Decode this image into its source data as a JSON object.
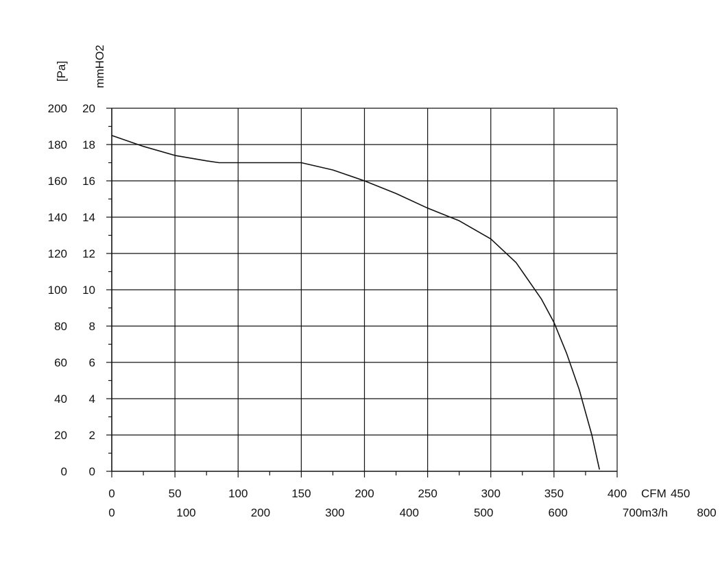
{
  "chart_data": {
    "type": "line",
    "title": "",
    "y_label_pa": "[Pa]",
    "y_label_mmh2o": "mmHO2",
    "x_label_cfm": "CFM",
    "x_label_m3h": "m3/h",
    "xlim_cfm": [
      0,
      400
    ],
    "ylim_pa": [
      0,
      200
    ],
    "y_ticks_pa": [
      "0",
      "20",
      "40",
      "60",
      "80",
      "100",
      "120",
      "140",
      "160",
      "180",
      "200"
    ],
    "y_ticks_mmh2o": [
      "0",
      "2",
      "4",
      "6",
      "8",
      "10",
      "12",
      "14",
      "16",
      "18",
      "20"
    ],
    "x_ticks_cfm": [
      "0",
      "50",
      "100",
      "150",
      "200",
      "250",
      "300",
      "350",
      "400",
      "450"
    ],
    "x_ticks_m3h": [
      "0",
      "100",
      "200",
      "300",
      "400",
      "500",
      "600",
      "700",
      "800"
    ],
    "grid": true,
    "series": [
      {
        "x": [
          0,
          25,
          50,
          75,
          85,
          100,
          125,
          150,
          175,
          200,
          225,
          250,
          275,
          300,
          320,
          340,
          350,
          360,
          370,
          380,
          386
        ],
        "y": [
          185,
          179,
          174,
          171,
          170,
          170,
          170,
          170,
          166,
          160,
          153,
          145,
          138,
          128,
          115,
          95,
          82,
          65,
          45,
          20,
          1
        ]
      }
    ]
  }
}
